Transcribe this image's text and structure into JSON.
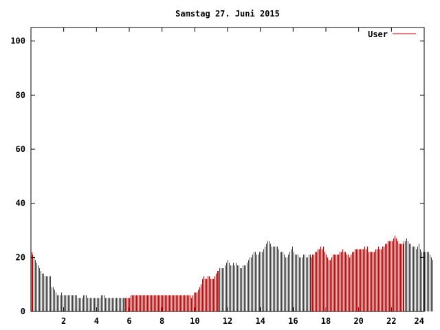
{
  "chart_data": {
    "type": "bar",
    "title": "Samstag 27. Juni 2015",
    "xlabel": "",
    "ylabel": "",
    "xlim": [
      0,
      24
    ],
    "ylim": [
      0,
      105
    ],
    "x_ticks": [
      2,
      4,
      6,
      8,
      10,
      12,
      14,
      16,
      18,
      20,
      22,
      24
    ],
    "y_ticks": [
      0,
      20,
      40,
      60,
      80,
      100
    ],
    "grid": false,
    "legend_position": "top-right",
    "colors": {
      "series": "#cc0000",
      "axes": "#000000",
      "background": "#ffffff"
    },
    "series": [
      {
        "name": "User",
        "bin_width_hours": 0.0833,
        "values": [
          22,
          21,
          20,
          19,
          18,
          17,
          16,
          15,
          14,
          14,
          13,
          13,
          13,
          13,
          13,
          9,
          9,
          8,
          7,
          6,
          6,
          6,
          7,
          6,
          6,
          6,
          6,
          6,
          6,
          6,
          6,
          6,
          6,
          6,
          5,
          5,
          5,
          5,
          6,
          6,
          6,
          5,
          5,
          5,
          5,
          5,
          5,
          5,
          5,
          5,
          5,
          6,
          6,
          6,
          5,
          5,
          5,
          5,
          5,
          5,
          5,
          5,
          5,
          5,
          5,
          5,
          5,
          5,
          5,
          5,
          5,
          5,
          5,
          6,
          6,
          6,
          6,
          6,
          6,
          6,
          6,
          6,
          6,
          6,
          6,
          6,
          6,
          6,
          6,
          6,
          6,
          6,
          6,
          6,
          6,
          6,
          6,
          6,
          6,
          6,
          6,
          6,
          6,
          6,
          6,
          6,
          6,
          6,
          6,
          6,
          6,
          6,
          6,
          6,
          6,
          6,
          6,
          5,
          6,
          7,
          7,
          7,
          8,
          9,
          10,
          12,
          13,
          12,
          12,
          13,
          13,
          12,
          12,
          12,
          13,
          14,
          15,
          15,
          16,
          16,
          16,
          16,
          17,
          18,
          19,
          18,
          17,
          17,
          18,
          17,
          18,
          17,
          17,
          16,
          16,
          17,
          17,
          17,
          18,
          19,
          20,
          20,
          21,
          22,
          22,
          21,
          21,
          22,
          22,
          22,
          23,
          24,
          25,
          26,
          26,
          25,
          24,
          24,
          24,
          24,
          24,
          23,
          22,
          22,
          22,
          21,
          20,
          20,
          21,
          22,
          23,
          24,
          22,
          21,
          21,
          21,
          20,
          20,
          20,
          21,
          21,
          20,
          20,
          21,
          21,
          20,
          21,
          21,
          22,
          22,
          23,
          23,
          24,
          23,
          24,
          22,
          21,
          20,
          19,
          19,
          20,
          21,
          21,
          21,
          21,
          21,
          22,
          22,
          23,
          22,
          22,
          21,
          21,
          20,
          21,
          22,
          22,
          23,
          23,
          23,
          23,
          23,
          23,
          23,
          24,
          23,
          24,
          22,
          22,
          22,
          22,
          22,
          23,
          23,
          24,
          23,
          23,
          24,
          24,
          25,
          25,
          26,
          26,
          26,
          26,
          27,
          28,
          27,
          26,
          25,
          25,
          25,
          25,
          26,
          26,
          27,
          26,
          25,
          25,
          24,
          24,
          24,
          23,
          24,
          25,
          23,
          22,
          22,
          22,
          22,
          22,
          22,
          21,
          20,
          19
        ]
      }
    ]
  }
}
